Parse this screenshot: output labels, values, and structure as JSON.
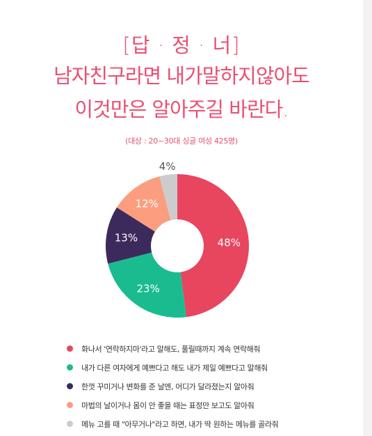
{
  "header": {
    "title_line1": "[답 · 정 · 너]",
    "title_line2": "남자친구라면 내가말하지않아도",
    "title_line3": "이것만은 알아주길 바란다.",
    "subtitle": "(대상 : 20~30대 싱글 여성 425명)"
  },
  "chart_data": {
    "type": "pie",
    "donut": true,
    "slices": [
      {
        "label": "화나서 '연락하지마'라고 말해도, 풀릴때까지 계속 연락해줘",
        "value": 48,
        "display": "48%",
        "color": "#e8455f"
      },
      {
        "label": "내가 다른 여자에게 예쁘다고 해도 내가 제일 예쁘다고 말해줘",
        "value": 23,
        "display": "23%",
        "color": "#1abc8f"
      },
      {
        "label": "한껏 꾸미거나 변화를 준 날엔, 어디가 달라졌는지 알아줘",
        "value": 13,
        "display": "13%",
        "color": "#3d2a5c"
      },
      {
        "label": "마법의 날이거나 몸이 안 좋을 때는 표정만 보고도 알아줘",
        "value": 12,
        "display": "12%",
        "color": "#fb9e80"
      },
      {
        "label": "메뉴 고를 때 \"아무거나\"라고 하면, 내가 딱 원하는 메뉴를 골라줘",
        "value": 4,
        "display": "4%",
        "color": "#cccccc"
      }
    ],
    "legend_position": "bottom"
  }
}
